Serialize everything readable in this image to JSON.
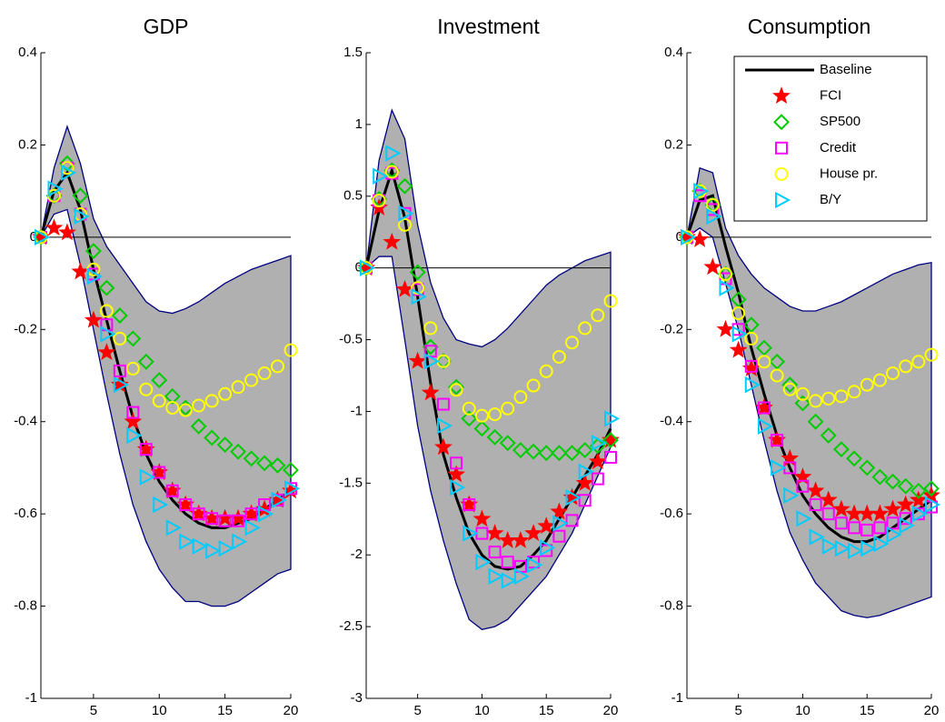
{
  "chart_data": [
    {
      "type": "line",
      "title": "GDP",
      "x": [
        1,
        2,
        3,
        4,
        5,
        6,
        7,
        8,
        9,
        10,
        11,
        12,
        13,
        14,
        15,
        16,
        17,
        18,
        19,
        20
      ],
      "xlim": [
        1,
        20
      ],
      "xticks": [
        5,
        10,
        15,
        20
      ],
      "ylim": [
        -1,
        0.4
      ],
      "yticks": [
        -1,
        -0.8,
        -0.6,
        -0.4,
        -0.2,
        0,
        0.2,
        0.4
      ],
      "band_color": "#b0b0b0",
      "band_edge": "#00007f",
      "band_upper": [
        0,
        0.15,
        0.24,
        0.16,
        0.04,
        -0.02,
        -0.06,
        -0.1,
        -0.14,
        -0.16,
        -0.165,
        -0.155,
        -0.14,
        -0.12,
        -0.1,
        -0.085,
        -0.07,
        -0.06,
        -0.05,
        -0.04
      ],
      "band_lower": [
        0,
        0.05,
        0.06,
        -0.06,
        -0.2,
        -0.34,
        -0.47,
        -0.58,
        -0.66,
        -0.72,
        -0.76,
        -0.79,
        -0.79,
        -0.8,
        -0.8,
        -0.79,
        -0.77,
        -0.75,
        -0.73,
        -0.72
      ],
      "series": [
        {
          "name": "Baseline",
          "color": "#000000",
          "marker": "line",
          "values": [
            0,
            0.1,
            0.14,
            0.06,
            -0.07,
            -0.18,
            -0.29,
            -0.39,
            -0.47,
            -0.53,
            -0.57,
            -0.6,
            -0.62,
            -0.63,
            -0.63,
            -0.62,
            -0.61,
            -0.59,
            -0.57,
            -0.55
          ]
        },
        {
          "name": "FCI",
          "color": "#ff0000",
          "marker": "star",
          "values": [
            0,
            0.02,
            0.01,
            -0.075,
            -0.18,
            -0.25,
            -0.32,
            -0.4,
            -0.46,
            -0.51,
            -0.55,
            -0.58,
            -0.6,
            -0.61,
            -0.61,
            -0.61,
            -0.6,
            -0.59,
            -0.57,
            -0.55
          ]
        },
        {
          "name": "SP500",
          "color": "#00cc00",
          "marker": "diamond",
          "values": [
            0,
            0.09,
            0.16,
            0.09,
            -0.03,
            -0.11,
            -0.17,
            -0.22,
            -0.27,
            -0.31,
            -0.345,
            -0.37,
            -0.41,
            -0.435,
            -0.45,
            -0.465,
            -0.48,
            -0.49,
            -0.495,
            -0.505
          ]
        },
        {
          "name": "Credit",
          "color": "#ff00ff",
          "marker": "square",
          "values": [
            0,
            0.09,
            0.15,
            0.05,
            -0.08,
            -0.19,
            -0.29,
            -0.38,
            -0.46,
            -0.51,
            -0.55,
            -0.58,
            -0.6,
            -0.61,
            -0.615,
            -0.615,
            -0.6,
            -0.58,
            -0.57,
            -0.545
          ]
        },
        {
          "name": "House pr.",
          "color": "#ffff00",
          "marker": "circle",
          "values": [
            0,
            0.09,
            0.15,
            0.05,
            -0.07,
            -0.16,
            -0.22,
            -0.285,
            -0.33,
            -0.355,
            -0.37,
            -0.375,
            -0.365,
            -0.355,
            -0.34,
            -0.325,
            -0.31,
            -0.295,
            -0.28,
            -0.245
          ]
        },
        {
          "name": "B/Y",
          "color": "#00ccff",
          "marker": "triangle",
          "values": [
            0,
            0.105,
            0.14,
            0.045,
            -0.085,
            -0.21,
            -0.32,
            -0.43,
            -0.52,
            -0.58,
            -0.63,
            -0.66,
            -0.67,
            -0.68,
            -0.675,
            -0.66,
            -0.63,
            -0.6,
            -0.57,
            -0.545
          ]
        }
      ]
    },
    {
      "type": "line",
      "title": "Investment",
      "x": [
        1,
        2,
        3,
        4,
        5,
        6,
        7,
        8,
        9,
        10,
        11,
        12,
        13,
        14,
        15,
        16,
        17,
        18,
        19,
        20
      ],
      "xlim": [
        1,
        20
      ],
      "xticks": [
        5,
        10,
        15,
        20
      ],
      "ylim": [
        -3,
        1.5
      ],
      "yticks": [
        -3,
        -2.5,
        -2,
        -1.5,
        -1,
        -0.5,
        0,
        0.5,
        1,
        1.5
      ],
      "band_color": "#b0b0b0",
      "band_edge": "#00007f",
      "band_upper": [
        0,
        0.75,
        1.1,
        0.9,
        0.3,
        -0.1,
        -0.35,
        -0.5,
        -0.53,
        -0.55,
        -0.5,
        -0.42,
        -0.32,
        -0.22,
        -0.12,
        -0.05,
        0,
        0.05,
        0.08,
        0.11
      ],
      "band_lower": [
        0,
        0.08,
        0.08,
        -0.5,
        -1.1,
        -1.55,
        -1.9,
        -2.2,
        -2.45,
        -2.52,
        -2.5,
        -2.45,
        -2.35,
        -2.25,
        -2.15,
        -2,
        -1.85,
        -1.65,
        -1.45,
        -1.25
      ],
      "series": [
        {
          "name": "Baseline",
          "color": "#000000",
          "marker": "line",
          "values": [
            0,
            0.4,
            0.68,
            0.35,
            -0.2,
            -0.8,
            -1.3,
            -1.6,
            -1.85,
            -2,
            -2.08,
            -2.1,
            -2.08,
            -2,
            -1.9,
            -1.75,
            -1.6,
            -1.45,
            -1.3,
            -1.12
          ]
        },
        {
          "name": "FCI",
          "color": "#ff0000",
          "marker": "star",
          "values": [
            0,
            0.42,
            0.18,
            -0.15,
            -0.65,
            -0.87,
            -1.25,
            -1.44,
            -1.65,
            -1.75,
            -1.85,
            -1.9,
            -1.9,
            -1.85,
            -1.8,
            -1.7,
            -1.6,
            -1.5,
            -1.35,
            -1.2
          ]
        },
        {
          "name": "SP500",
          "color": "#00cc00",
          "marker": "diamond",
          "values": [
            0,
            0.48,
            0.68,
            0.57,
            -0.03,
            -0.55,
            -0.65,
            -0.83,
            -1.05,
            -1.12,
            -1.18,
            -1.22,
            -1.27,
            -1.28,
            -1.29,
            -1.29,
            -1.29,
            -1.27,
            -1.24,
            -1.2
          ]
        },
        {
          "name": "Credit",
          "color": "#ff00ff",
          "marker": "square",
          "values": [
            0,
            0.47,
            0.66,
            0.38,
            -0.15,
            -0.58,
            -0.95,
            -1.36,
            -1.65,
            -1.85,
            -1.98,
            -2.05,
            -2.08,
            -2.05,
            -1.97,
            -1.87,
            -1.76,
            -1.62,
            -1.47,
            -1.32
          ]
        },
        {
          "name": "House pr.",
          "color": "#ffff00",
          "marker": "circle",
          "values": [
            0,
            0.47,
            0.67,
            0.3,
            -0.14,
            -0.42,
            -0.65,
            -0.85,
            -0.98,
            -1.03,
            -1.02,
            -0.98,
            -0.9,
            -0.82,
            -0.72,
            -0.62,
            -0.52,
            -0.42,
            -0.33,
            -0.23
          ]
        },
        {
          "name": "B/Y",
          "color": "#00ccff",
          "marker": "triangle",
          "values": [
            0,
            0.64,
            0.8,
            0.38,
            -0.2,
            -0.65,
            -1.1,
            -1.53,
            -1.85,
            -2.05,
            -2.15,
            -2.18,
            -2.15,
            -2.07,
            -1.95,
            -1.78,
            -1.6,
            -1.42,
            -1.22,
            -1.05
          ]
        }
      ]
    },
    {
      "type": "line",
      "title": "Consumption",
      "x": [
        1,
        2,
        3,
        4,
        5,
        6,
        7,
        8,
        9,
        10,
        11,
        12,
        13,
        14,
        15,
        16,
        17,
        18,
        19,
        20
      ],
      "xlim": [
        1,
        20
      ],
      "xticks": [
        5,
        10,
        15,
        20
      ],
      "ylim": [
        -1,
        0.4
      ],
      "yticks": [
        -1,
        -0.8,
        -0.6,
        -0.4,
        -0.2,
        0,
        0.2,
        0.4
      ],
      "band_color": "#b0b0b0",
      "band_edge": "#00007f",
      "legend": "upper right",
      "band_upper": [
        0,
        0.15,
        0.14,
        0.02,
        -0.04,
        -0.08,
        -0.11,
        -0.13,
        -0.15,
        -0.16,
        -0.16,
        -0.15,
        -0.14,
        -0.125,
        -0.11,
        -0.095,
        -0.08,
        -0.07,
        -0.06,
        -0.055
      ],
      "band_lower": [
        0,
        0.02,
        0,
        -0.1,
        -0.2,
        -0.32,
        -0.44,
        -0.55,
        -0.64,
        -0.7,
        -0.75,
        -0.78,
        -0.81,
        -0.82,
        -0.825,
        -0.82,
        -0.81,
        -0.8,
        -0.79,
        -0.78
      ],
      "series": [
        {
          "name": "Baseline",
          "color": "#000000",
          "marker": "line",
          "values": [
            0,
            0.08,
            0.09,
            -0.02,
            -0.12,
            -0.24,
            -0.34,
            -0.43,
            -0.5,
            -0.56,
            -0.6,
            -0.63,
            -0.65,
            -0.66,
            -0.66,
            -0.65,
            -0.63,
            -0.61,
            -0.59,
            -0.57
          ]
        },
        {
          "name": "FCI",
          "color": "#ff0000",
          "marker": "star",
          "values": [
            0,
            -0.005,
            -0.065,
            -0.2,
            -0.245,
            -0.285,
            -0.37,
            -0.44,
            -0.48,
            -0.52,
            -0.55,
            -0.57,
            -0.59,
            -0.6,
            -0.6,
            -0.6,
            -0.59,
            -0.58,
            -0.57,
            -0.56
          ]
        },
        {
          "name": "SP500",
          "color": "#00cc00",
          "marker": "diamond",
          "values": [
            0,
            0.1,
            0.07,
            -0.08,
            -0.135,
            -0.19,
            -0.24,
            -0.27,
            -0.32,
            -0.36,
            -0.4,
            -0.43,
            -0.46,
            -0.48,
            -0.5,
            -0.52,
            -0.53,
            -0.54,
            -0.55,
            -0.545
          ]
        },
        {
          "name": "Credit",
          "color": "#ff00ff",
          "marker": "square",
          "values": [
            0,
            0.09,
            0.06,
            -0.09,
            -0.2,
            -0.28,
            -0.37,
            -0.44,
            -0.5,
            -0.54,
            -0.58,
            -0.6,
            -0.62,
            -0.63,
            -0.635,
            -0.63,
            -0.62,
            -0.61,
            -0.6,
            -0.585
          ]
        },
        {
          "name": "House pr.",
          "color": "#ffff00",
          "marker": "circle",
          "values": [
            0,
            0.1,
            0.07,
            -0.08,
            -0.165,
            -0.22,
            -0.27,
            -0.3,
            -0.33,
            -0.34,
            -0.355,
            -0.35,
            -0.345,
            -0.335,
            -0.32,
            -0.31,
            -0.295,
            -0.28,
            -0.27,
            -0.255
          ]
        },
        {
          "name": "B/Y",
          "color": "#00ccff",
          "marker": "triangle",
          "values": [
            0,
            0.1,
            0.045,
            -0.11,
            -0.21,
            -0.32,
            -0.41,
            -0.5,
            -0.56,
            -0.61,
            -0.65,
            -0.67,
            -0.675,
            -0.68,
            -0.675,
            -0.665,
            -0.645,
            -0.625,
            -0.6,
            -0.58
          ]
        }
      ]
    }
  ]
}
